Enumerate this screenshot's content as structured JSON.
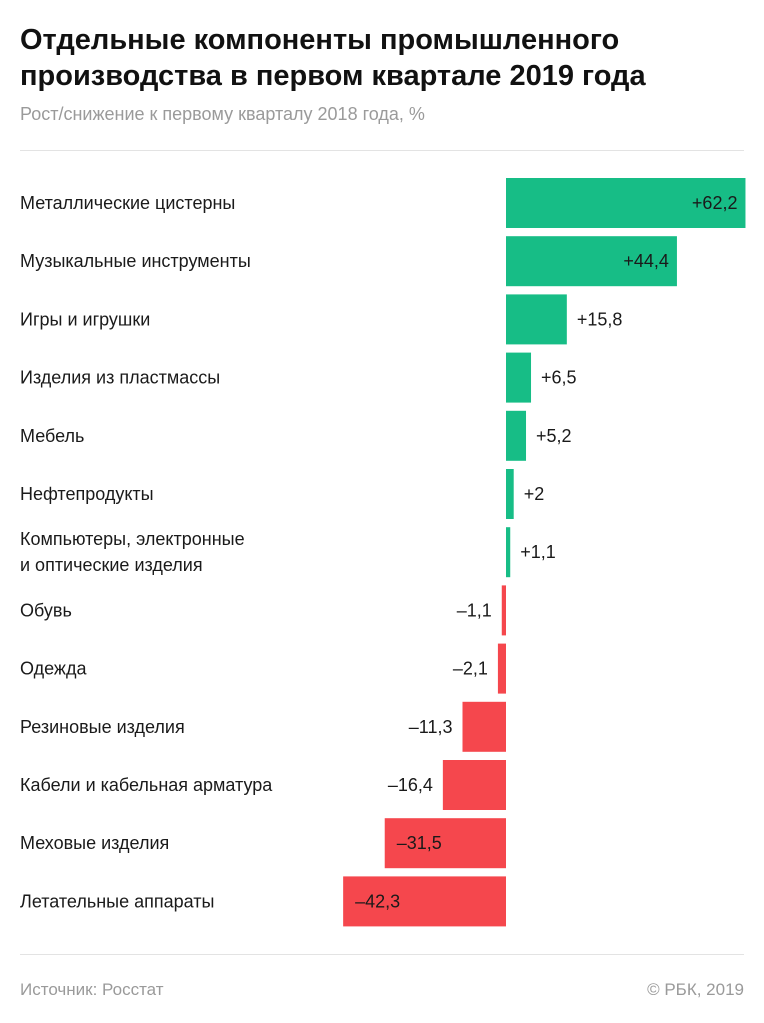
{
  "header": {
    "title": "Отдельные компоненты промышленного производства в первом квартале 2019 года",
    "subtitle": "Рост/снижение к первому кварталу 2018 года, %"
  },
  "footer": {
    "source": "Источник: Росстат",
    "copyright": "© РБК, 2019"
  },
  "colors": {
    "positive": "#17bd86",
    "negative": "#f5474d"
  },
  "chart_data": {
    "type": "bar",
    "orientation": "horizontal",
    "title": "Отдельные компоненты промышленного производства в первом квартале 2019 года",
    "subtitle": "Рост/снижение к первому кварталу 2018 года, %",
    "categories": [
      [
        "Металлические цистерны"
      ],
      [
        "Музыкальные инструменты"
      ],
      [
        "Игры и игрушки"
      ],
      [
        "Изделия из пластмассы"
      ],
      [
        "Мебель"
      ],
      [
        "Нефтепродукты"
      ],
      [
        "Компьютеры, электронные",
        "и оптические изделия"
      ],
      [
        "Обувь"
      ],
      [
        "Одежда"
      ],
      [
        "Резиновые изделия"
      ],
      [
        "Кабели и кабельная арматура"
      ],
      [
        "Меховые изделия"
      ],
      [
        "Летательные аппараты"
      ]
    ],
    "values": [
      62.2,
      44.4,
      15.8,
      6.5,
      5.2,
      2,
      1.1,
      -1.1,
      -2.1,
      -11.3,
      -16.4,
      -31.5,
      -42.3
    ],
    "value_labels": [
      "+62,2",
      "+44,4",
      "+15,8",
      "+6,5",
      "+5,2",
      "+2",
      "+1,1",
      "–1,1",
      "–2,1",
      "–11,3",
      "–16,4",
      "–31,5",
      "–42,3"
    ],
    "xlim": [
      -42.3,
      62.2
    ],
    "grid": false,
    "legend": "none"
  }
}
